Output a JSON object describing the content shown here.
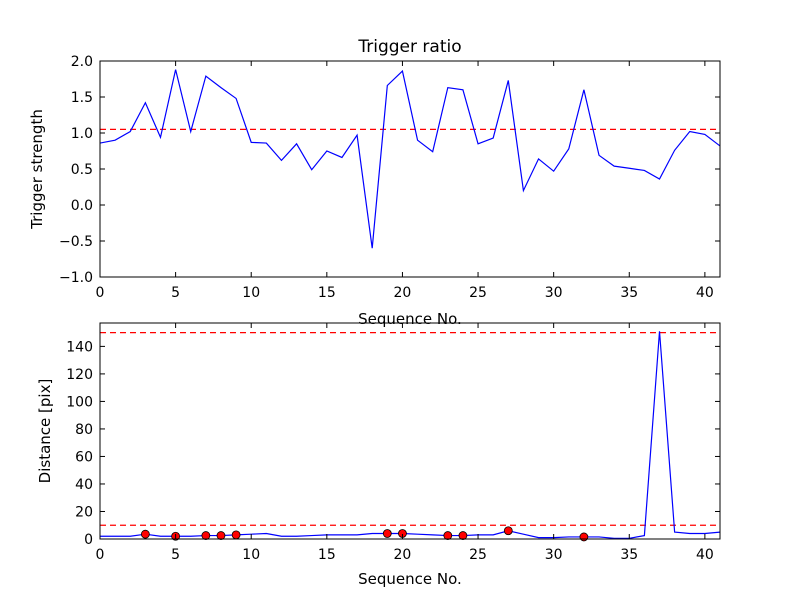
{
  "chart_data": [
    {
      "type": "line",
      "title": "Trigger ratio",
      "xlabel": "Sequence No.",
      "ylabel": "Trigger strength",
      "xlim": [
        0,
        41
      ],
      "ylim": [
        -1.0,
        2.0
      ],
      "xticks": [
        "0",
        "5",
        "10",
        "15",
        "20",
        "25",
        "30",
        "35",
        "40"
      ],
      "yticks": [
        "−1.0",
        "−0.5",
        "0.0",
        "0.5",
        "1.0",
        "1.5",
        "2.0"
      ],
      "grid": false,
      "series": [
        {
          "color": "#0000ff",
          "x": [
            0,
            1,
            2,
            3,
            4,
            5,
            6,
            7,
            8,
            9,
            10,
            11,
            12,
            13,
            14,
            15,
            16,
            17,
            18,
            19,
            20,
            21,
            22,
            23,
            24,
            25,
            26,
            27,
            28,
            29,
            30,
            31,
            32,
            33,
            34,
            35,
            36,
            37,
            38,
            39,
            40,
            41
          ],
          "values": [
            0.86,
            0.9,
            1.02,
            1.42,
            0.94,
            1.88,
            1.02,
            1.79,
            1.63,
            1.48,
            0.87,
            0.86,
            0.62,
            0.85,
            0.49,
            0.75,
            0.66,
            0.97,
            -0.6,
            1.66,
            1.86,
            0.9,
            0.74,
            1.63,
            1.6,
            0.85,
            0.93,
            1.73,
            0.2,
            0.64,
            0.47,
            0.78,
            1.6,
            0.69,
            0.54,
            0.51,
            0.48,
            0.36,
            0.76,
            1.02,
            0.98,
            0.82
          ]
        }
      ],
      "threshold_lines": [
        {
          "y": 1.05,
          "color": "#ff0000",
          "style": "dashed"
        }
      ]
    },
    {
      "type": "line",
      "title": "",
      "xlabel": "Sequence No.",
      "ylabel": "Distance [pix]",
      "xlim": [
        0,
        41
      ],
      "ylim": [
        0,
        157
      ],
      "xticks": [
        "0",
        "5",
        "10",
        "15",
        "20",
        "25",
        "30",
        "35",
        "40"
      ],
      "yticks": [
        "0",
        "20",
        "40",
        "60",
        "80",
        "100",
        "120",
        "140"
      ],
      "grid": false,
      "series": [
        {
          "color": "#0000ff",
          "x": [
            0,
            1,
            2,
            3,
            4,
            5,
            6,
            7,
            8,
            9,
            10,
            11,
            12,
            13,
            14,
            15,
            16,
            17,
            18,
            19,
            20,
            21,
            22,
            23,
            24,
            25,
            26,
            27,
            28,
            29,
            30,
            31,
            32,
            33,
            34,
            35,
            36,
            37,
            38,
            39,
            40,
            41
          ],
          "values": [
            2,
            2,
            2,
            3.5,
            2,
            2,
            2,
            2.5,
            2.5,
            3,
            3.5,
            4,
            2,
            2,
            2.5,
            3,
            3,
            3,
            4,
            4,
            4,
            3.5,
            3,
            2.5,
            2.5,
            3,
            3,
            6,
            3.5,
            1,
            1,
            1.5,
            1.5,
            1.5,
            0.5,
            0.5,
            2.5,
            151,
            5,
            4,
            4,
            5
          ]
        }
      ],
      "markers": {
        "color": "#ff0000",
        "x": [
          3,
          5,
          7,
          8,
          9,
          19,
          20,
          23,
          24,
          27,
          32
        ],
        "values": [
          3.5,
          2,
          2.5,
          2.5,
          3,
          4,
          4,
          2.5,
          2.5,
          6,
          1.5
        ]
      },
      "threshold_lines": [
        {
          "y": 150,
          "color": "#ff0000",
          "style": "dashed"
        },
        {
          "y": 10,
          "color": "#ff0000",
          "style": "dashed"
        }
      ]
    }
  ]
}
